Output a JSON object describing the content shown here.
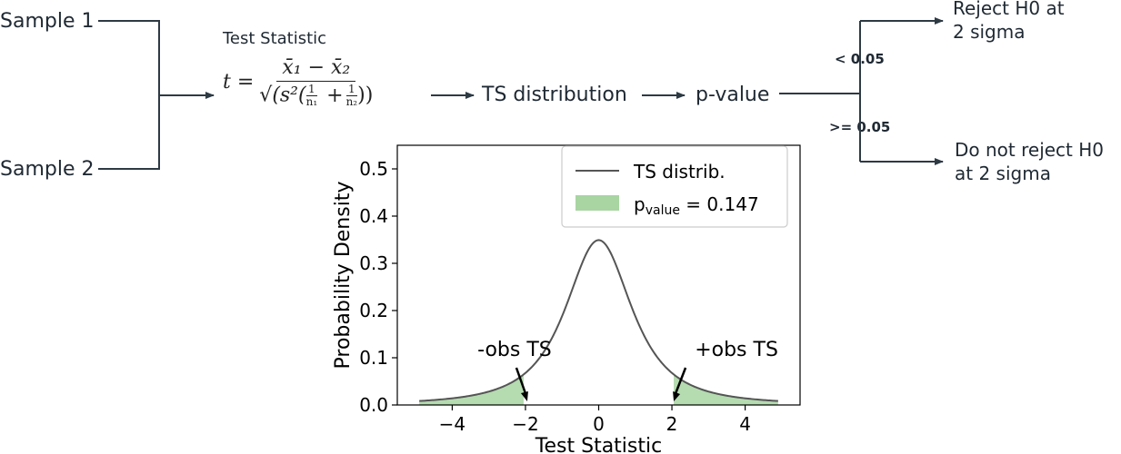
{
  "inputs": {
    "sample1": "Sample 1",
    "sample2": "Sample 2"
  },
  "test_statistic": {
    "label": "Test Statistic",
    "formula": {
      "lhs": "t =",
      "numerator": "x̄₁ − x̄₂",
      "sqrt": "√",
      "den_open": "(s²(",
      "f1_num": "1",
      "f1_den": "n₁",
      "plus": "+",
      "f2_num": "1",
      "f2_den": "n₂",
      "den_close": "))"
    }
  },
  "flow": {
    "ts_distribution": "TS distribution",
    "p_value": "p-value"
  },
  "decision": {
    "lt_threshold": "< 0.05",
    "ge_threshold": ">= 0.05",
    "reject": "Reject H0 at 2 sigma",
    "not_reject": "Do not reject H0 at 2 sigma"
  },
  "colors": {
    "curve": "#555555",
    "fill": "#a8d5a2",
    "arrow": "#2d3a44"
  },
  "chart_data": {
    "type": "line",
    "xlabel": "Test Statistic",
    "ylabel": "Probability Density",
    "xlim": [
      -5.5,
      5.5
    ],
    "ylim": [
      0,
      0.55
    ],
    "xticks": [
      -4,
      -2,
      0,
      2,
      4
    ],
    "xtick_labels": [
      "−4",
      "−2",
      "0",
      "2",
      "4"
    ],
    "yticks": [
      0,
      0.1,
      0.2,
      0.3,
      0.4,
      0.5
    ],
    "ytick_labels": [
      "0.0",
      "0.1",
      "0.2",
      "0.3",
      "0.4",
      "0.5"
    ],
    "curve": {
      "distribution": "student-t",
      "df": 1.8,
      "x_range": [
        -4.9,
        4.9
      ]
    },
    "series": [
      {
        "name": "TS distrib.",
        "kind": "line"
      }
    ],
    "shaded": {
      "name_prefix": "p",
      "name_sub": "value",
      "name_suffix": " = 0.147",
      "p_value": 0.147,
      "left_tail_max": -2.05,
      "right_tail_min": 2.05
    },
    "annotations": [
      {
        "text": "-obs TS",
        "x": -2.05
      },
      {
        "text": "+obs TS",
        "x": 2.05
      }
    ],
    "legend": "top-right",
    "grid": false
  }
}
